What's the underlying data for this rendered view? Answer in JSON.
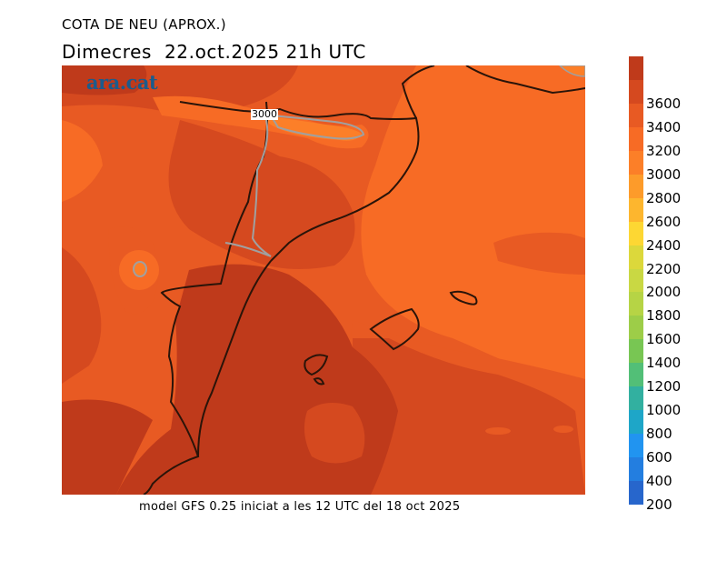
{
  "header": {
    "title": "COTA DE NEU (APROX.)",
    "subtitle": "Dimecres  22.oct.2025 21h UTC"
  },
  "map": {
    "logo": "ara.cat",
    "contour_label": "3000",
    "region": "Catalonia, Valencia, Balearic Islands, Pyrenees",
    "dominant_range_m": "2800-3800"
  },
  "footer": {
    "model_note": "model GFS 0.25 iniciat a les 12 UTC del 18 oct 2025"
  },
  "colorbar": {
    "unit": "m",
    "levels": [
      {
        "label": "",
        "color": "#bf3a1b"
      },
      {
        "label": "3600",
        "color": "#d5491f"
      },
      {
        "label": "3400",
        "color": "#e85a23"
      },
      {
        "label": "3200",
        "color": "#f76b25"
      },
      {
        "label": "3000",
        "color": "#fc7f28"
      },
      {
        "label": "2800",
        "color": "#fd9b2a"
      },
      {
        "label": "2600",
        "color": "#fdb62e"
      },
      {
        "label": "2400",
        "color": "#fdd733"
      },
      {
        "label": "2200",
        "color": "#dcd83b"
      },
      {
        "label": "2000",
        "color": "#c9d843"
      },
      {
        "label": "1800",
        "color": "#b6d445"
      },
      {
        "label": "1600",
        "color": "#9dcd48"
      },
      {
        "label": "1400",
        "color": "#78c653"
      },
      {
        "label": "1200",
        "color": "#52bf77"
      },
      {
        "label": "1000",
        "color": "#32b0a0"
      },
      {
        "label": "800",
        "color": "#1ea6c8"
      },
      {
        "label": "600",
        "color": "#2194f0"
      },
      {
        "label": "400",
        "color": "#237ee0"
      },
      {
        "label": "200",
        "color": "#2766cc"
      }
    ]
  }
}
